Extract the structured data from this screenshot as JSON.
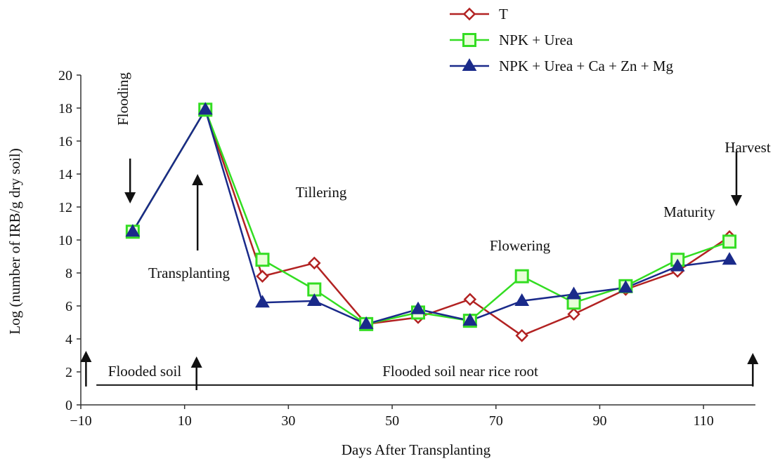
{
  "chart_data": {
    "type": "line",
    "title": "",
    "xlabel": "Days After Transplanting",
    "ylabel": "Log (number of IRB/g dry soil)",
    "xlim": [
      -10,
      120
    ],
    "ylim": [
      0,
      20
    ],
    "xticks": [
      -10,
      10,
      30,
      50,
      70,
      90,
      110
    ],
    "yticks": [
      0,
      2,
      4,
      6,
      8,
      10,
      12,
      14,
      16,
      18,
      20
    ],
    "grid": false,
    "legend_position": "top-right",
    "series": [
      {
        "name": "T",
        "color": "#b22222",
        "marker": "diamond-open",
        "x": [
          0,
          14,
          25,
          35,
          45,
          55,
          65,
          75,
          85,
          95,
          105,
          115
        ],
        "y": [
          10.5,
          17.9,
          7.8,
          8.6,
          4.9,
          5.3,
          6.4,
          4.2,
          5.5,
          7.0,
          8.1,
          10.2
        ]
      },
      {
        "name": "NPK + Urea",
        "color": "#33dd22",
        "marker": "square-open",
        "x": [
          0,
          14,
          25,
          35,
          45,
          55,
          65,
          75,
          85,
          95,
          105,
          115
        ],
        "y": [
          10.5,
          17.9,
          8.8,
          7.0,
          4.9,
          5.6,
          5.1,
          7.8,
          6.2,
          7.2,
          8.8,
          9.9
        ]
      },
      {
        "name": "NPK + Urea + Ca + Zn + Mg",
        "color": "#1a2a8a",
        "marker": "triangle-filled",
        "x": [
          0,
          14,
          25,
          35,
          45,
          55,
          65,
          75,
          85,
          95,
          105,
          115
        ],
        "y": [
          10.5,
          17.9,
          6.2,
          6.3,
          4.9,
          5.8,
          5.1,
          6.3,
          6.7,
          7.1,
          8.4,
          8.8
        ]
      }
    ],
    "annotations": {
      "flooding": "Flooding",
      "transplanting": "Transplanting",
      "tillering": "Tillering",
      "flowering": "Flowering",
      "maturity": "Maturity",
      "harvest": "Harvest",
      "flooded_soil": "Flooded soil",
      "flooded_soil_near_root": "Flooded soil near rice root"
    }
  }
}
